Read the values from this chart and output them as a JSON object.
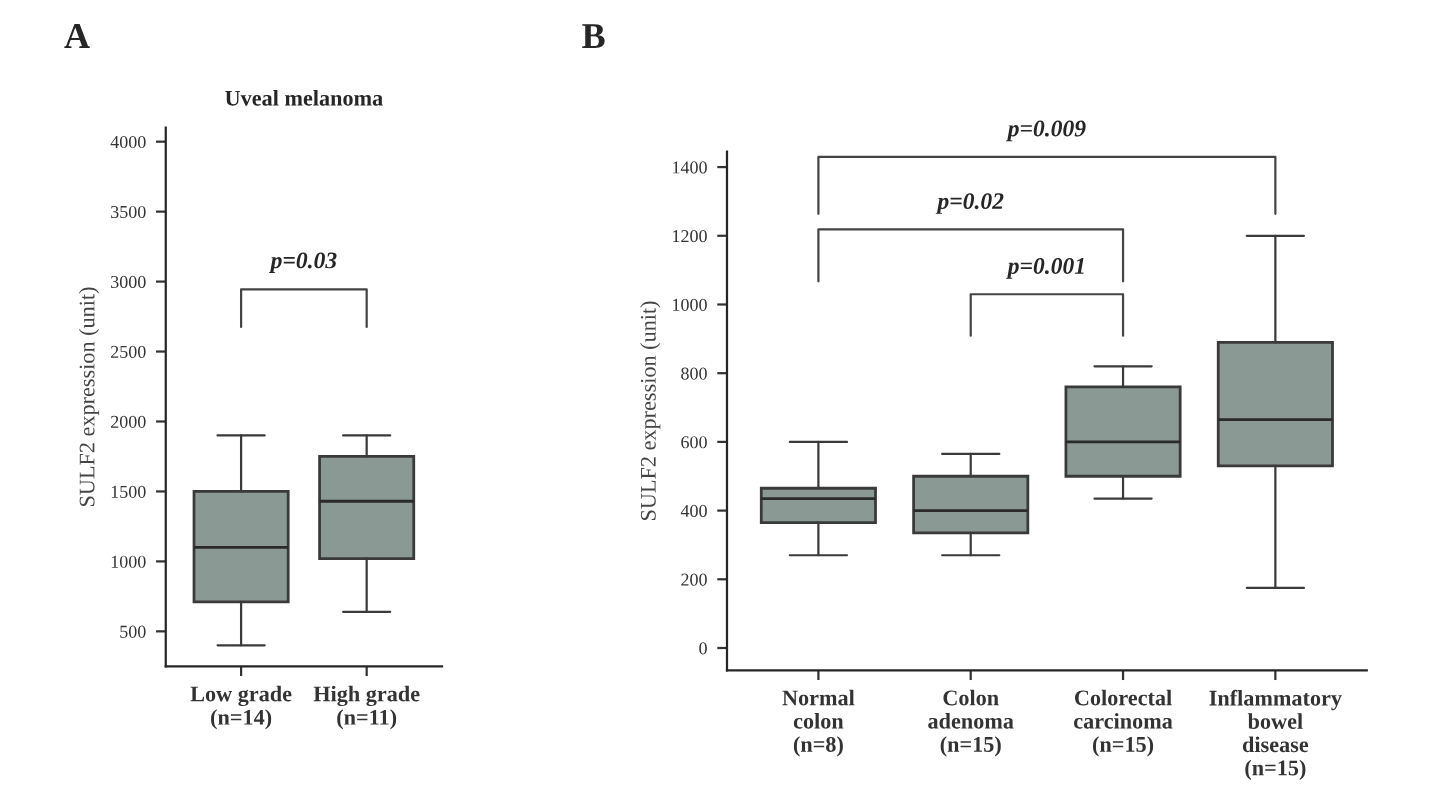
{
  "chart_data": [
    {
      "type": "box",
      "title": "A",
      "subtitle": "Uveal melanoma",
      "ylabel": "SULF2 expression (unit)",
      "categories": [
        "Low grade\n(n=14)",
        "High grade\n(n=11)"
      ],
      "color": "#8a9994",
      "boxes": [
        {
          "low": 400,
          "q1": 710,
          "median": 1100,
          "q3": 1500,
          "high": 1900
        },
        {
          "low": 640,
          "q1": 1020,
          "median": 1430,
          "q3": 1750,
          "high": 1900
        }
      ],
      "ylim": [
        250,
        4100
      ],
      "yticks": [
        500,
        1000,
        1500,
        2000,
        2500,
        3000,
        3500,
        4000
      ],
      "grid": false,
      "annotations": [
        "p=0.03"
      ]
    },
    {
      "type": "box",
      "title": "B",
      "ylabel": "SULF2 expression (unit)",
      "categories": [
        "Normal\ncolon\n(n=8)",
        "Colon\nadenoma\n(n=15)",
        "Colorectal\ncarcinoma\n(n=15)",
        "Inflammatory\nbowel\ndisease\n(n=15)"
      ],
      "color": "#8a9994",
      "boxes": [
        {
          "low": 270,
          "q1": 365,
          "median": 435,
          "q3": 465,
          "high": 600
        },
        {
          "low": 270,
          "q1": 335,
          "median": 400,
          "q3": 500,
          "high": 565
        },
        {
          "low": 435,
          "q1": 500,
          "median": 600,
          "q3": 760,
          "high": 820
        },
        {
          "low": 175,
          "q1": 530,
          "median": 665,
          "q3": 890,
          "high": 1200
        }
      ],
      "ylim": [
        -65,
        1445
      ],
      "yticks": [
        0,
        200,
        400,
        600,
        800,
        1000,
        1200,
        1400
      ],
      "grid": false,
      "annotations": [
        "p=0.009",
        "p=0.02",
        "p=0.001"
      ]
    }
  ]
}
